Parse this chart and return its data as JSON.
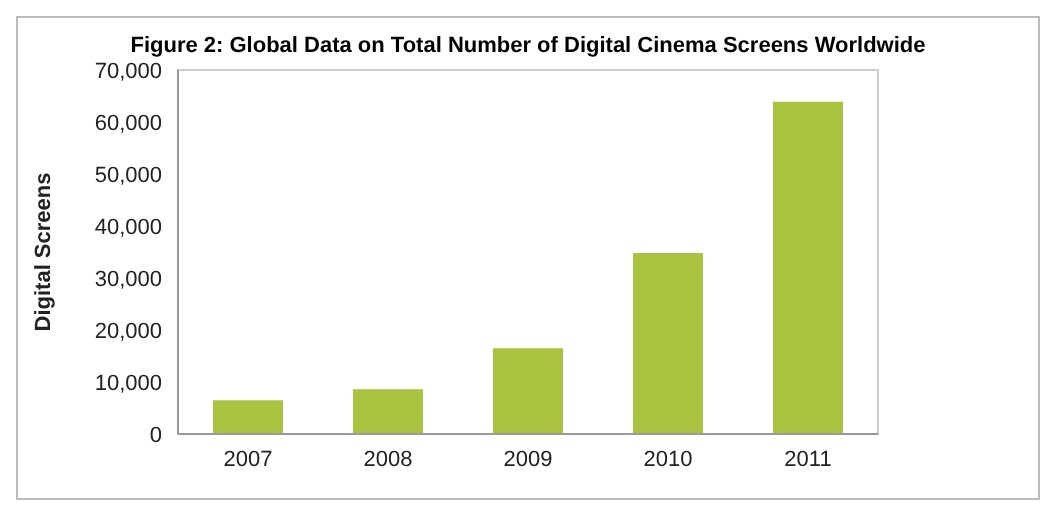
{
  "chart_data": {
    "type": "bar",
    "title": "Figure 2: Global Data on Total Number of Digital Cinema Screens Worldwide",
    "ylabel": "Digital Screens",
    "categories": [
      "2007",
      "2008",
      "2009",
      "2010",
      "2011"
    ],
    "values": [
      6500,
      8600,
      16500,
      34800,
      63900
    ],
    "color": "#a9c23f",
    "ylim": [
      0,
      70000
    ],
    "yticks": [
      {
        "value": 0,
        "label": "0"
      },
      {
        "value": 10000,
        "label": "10,000"
      },
      {
        "value": 20000,
        "label": "20,000"
      },
      {
        "value": 30000,
        "label": "30,000"
      },
      {
        "value": 40000,
        "label": "40,000"
      },
      {
        "value": 50000,
        "label": "50,000"
      },
      {
        "value": 60000,
        "label": "60,000"
      },
      {
        "value": 70000,
        "label": "70,000"
      }
    ],
    "grid": false
  }
}
